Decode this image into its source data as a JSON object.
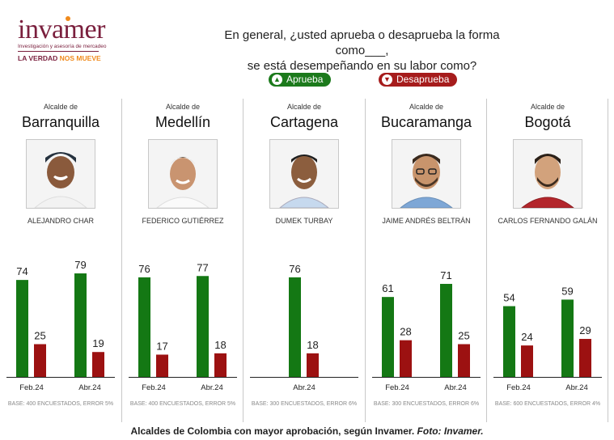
{
  "brand": {
    "name": "invamer",
    "subtitle": "Investigación y asesoría de mercadeo",
    "tagline_a": "LA VERDAD",
    "tagline_b": "NOS MUEVE"
  },
  "question": {
    "line1": "En general, ¿usted aprueba o desaprueba la forma como___,",
    "line2": "se está desempeñando en su labor como?"
  },
  "legend": {
    "approve": "Aprueba",
    "disapprove": "Desaprueba"
  },
  "colors": {
    "approve": "#147814",
    "disapprove": "#9c1111",
    "brand": "#7a1f3d",
    "accent": "#f08a1c"
  },
  "chart_data": [
    {
      "type": "bar",
      "label": "Alcalde de",
      "city": "Barranquilla",
      "mayor": "ALEJANDRO CHAR",
      "categories": [
        "Feb.24",
        "Abr.24"
      ],
      "series": [
        {
          "name": "Aprueba",
          "values": [
            74,
            79
          ]
        },
        {
          "name": "Desaprueba",
          "values": [
            25,
            19
          ]
        }
      ],
      "base": "BASE: 400 ENCUESTADOS, ERROR 5%"
    },
    {
      "type": "bar",
      "label": "Alcalde de",
      "city": "Medellín",
      "mayor": "FEDERICO GUTIÉRREZ",
      "categories": [
        "Feb.24",
        "Abr.24"
      ],
      "series": [
        {
          "name": "Aprueba",
          "values": [
            76,
            77
          ]
        },
        {
          "name": "Desaprueba",
          "values": [
            17,
            18
          ]
        }
      ],
      "base": "BASE: 400 ENCUESTADOS, ERROR 5%"
    },
    {
      "type": "bar",
      "label": "Alcalde de",
      "city": "Cartagena",
      "mayor": "DUMEK TURBAY",
      "categories": [
        "Abr.24"
      ],
      "series": [
        {
          "name": "Aprueba",
          "values": [
            76
          ]
        },
        {
          "name": "Desaprueba",
          "values": [
            18
          ]
        }
      ],
      "base": "BASE: 300 ENCUESTADOS, ERROR 6%"
    },
    {
      "type": "bar",
      "label": "Alcalde de",
      "city": "Bucaramanga",
      "mayor": "JAIME ANDRÉS BELTRÁN",
      "categories": [
        "Feb.24",
        "Abr.24"
      ],
      "series": [
        {
          "name": "Aprueba",
          "values": [
            61,
            71
          ]
        },
        {
          "name": "Desaprueba",
          "values": [
            28,
            25
          ]
        }
      ],
      "base": "BASE: 300 ENCUESTADOS, ERROR 6%"
    },
    {
      "type": "bar",
      "label": "Alcalde de",
      "city": "Bogotá",
      "mayor": "CARLOS FERNANDO GALÁN",
      "categories": [
        "Feb.24",
        "Abr.24"
      ],
      "series": [
        {
          "name": "Aprueba",
          "values": [
            54,
            59
          ]
        },
        {
          "name": "Desaprueba",
          "values": [
            24,
            29
          ]
        }
      ],
      "base": "BASE: 600 ENCUESTADOS, ERROR 4%"
    }
  ],
  "caption": {
    "text": "Alcaldes de Colombia con mayor aprobación, según Invamer.",
    "credit": "Foto: Invamer."
  }
}
